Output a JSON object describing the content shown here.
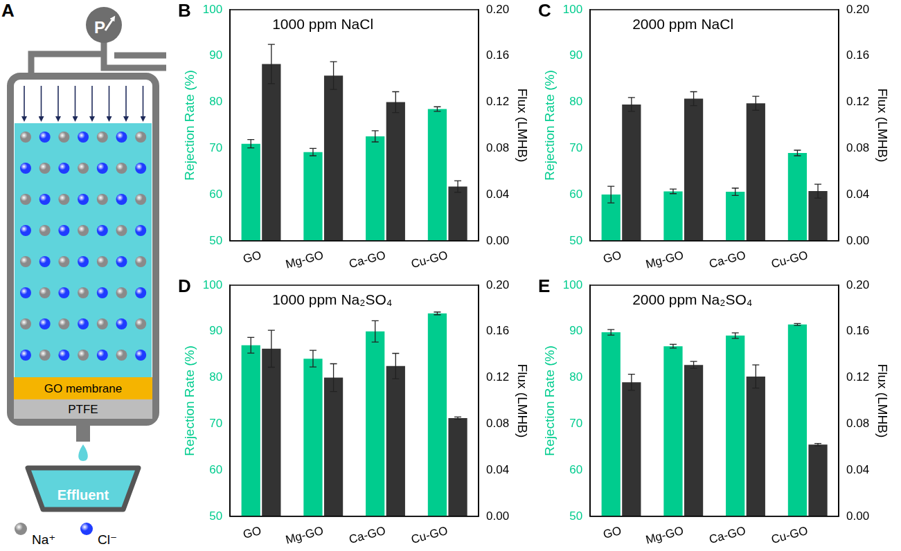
{
  "diagram": {
    "panel": "A",
    "gauge": "P",
    "membrane": "GO membrane",
    "support": "PTFE",
    "effluent": "Effluent",
    "ions": [
      {
        "label": "Na⁺",
        "color": "#8a8a8a"
      },
      {
        "label": "Cl⁻",
        "color": "#1f3cff"
      }
    ]
  },
  "chart_data": [
    {
      "panel": "B",
      "type": "bar",
      "title": "1000 ppm NaCl",
      "categories": [
        "GO",
        "Mg-GO",
        "Ca-GO",
        "Cu-GO"
      ],
      "y_label": "Rejection Rate (%)",
      "y2_label": "Flux (LMHB)",
      "grid": false,
      "ylim": [
        50,
        100
      ],
      "yticks": [
        50,
        60,
        70,
        80,
        90,
        100
      ],
      "y2lim": [
        0,
        0.2
      ],
      "y2ticks": [
        {
          "value": 0,
          "label": "0.00"
        },
        0.04,
        0.08,
        0.12,
        0.16,
        {
          "value": 0.2,
          "label": "0.20"
        }
      ],
      "series": [
        {
          "color": "#00cc8e",
          "values": [
            71.0,
            69.2,
            72.6,
            78.5
          ],
          "errors": [
            0.9,
            0.8,
            1.2,
            0.5
          ]
        },
        {
          "color": "#333333",
          "axis": "y2",
          "values": [
            0.153,
            0.143,
            0.12,
            0.047
          ],
          "errors": [
            0.017,
            0.012,
            0.009,
            0.005
          ]
        }
      ]
    },
    {
      "panel": "C",
      "type": "bar",
      "title": "2000 ppm NaCl",
      "categories": [
        "GO",
        "Mg-GO",
        "Ca-GO",
        "Cu-GO"
      ],
      "y_label": "Rejection Rate (%)",
      "y2_label": "Flux (LMHB)",
      "grid": false,
      "ylim": [
        50,
        100
      ],
      "yticks": [
        50,
        60,
        70,
        80,
        90,
        100
      ],
      "y2lim": [
        0,
        0.2
      ],
      "y2ticks": [
        {
          "value": 0,
          "label": "0.00"
        },
        0.04,
        0.08,
        0.12,
        0.16,
        {
          "value": 0.2,
          "label": "0.20"
        }
      ],
      "series": [
        {
          "color": "#00cc8e",
          "values": [
            60.0,
            60.7,
            60.6,
            69.0
          ],
          "errors": [
            1.8,
            0.5,
            0.8,
            0.6
          ]
        },
        {
          "color": "#333333",
          "axis": "y2",
          "values": [
            0.118,
            0.123,
            0.119,
            0.043
          ],
          "errors": [
            0.006,
            0.006,
            0.006,
            0.006
          ]
        }
      ]
    },
    {
      "panel": "D",
      "type": "bar",
      "title": "1000 ppm Na₂SO₄",
      "categories": [
        "GO",
        "Mg-GO",
        "Ca-GO",
        "Cu-GO"
      ],
      "y_label": "Rejection Rate (%)",
      "y2_label": "Flux (LMHB)",
      "grid": false,
      "ylim": [
        50,
        100
      ],
      "yticks": [
        50,
        60,
        70,
        80,
        90,
        100
      ],
      "y2lim": [
        0,
        0.2
      ],
      "y2ticks": [
        {
          "value": 0,
          "label": "0.00"
        },
        0.04,
        0.08,
        0.12,
        0.16,
        {
          "value": 0.2,
          "label": "0.20"
        }
      ],
      "series": [
        {
          "color": "#00cc8e",
          "values": [
            87.0,
            84.1,
            90.0,
            93.9
          ],
          "errors": [
            1.7,
            1.8,
            2.3,
            0.3
          ]
        },
        {
          "color": "#333333",
          "axis": "y2",
          "values": [
            0.145,
            0.12,
            0.13,
            0.085
          ],
          "errors": [
            0.016,
            0.012,
            0.011,
            0.001
          ]
        }
      ]
    },
    {
      "panel": "E",
      "type": "bar",
      "title": "2000 ppm Na₂SO₄",
      "categories": [
        "GO",
        "Mg-GO",
        "Ca-GO",
        "Cu-GO"
      ],
      "y_label": "Rejection Rate (%)",
      "y2_label": "Flux (LMHB)",
      "grid": false,
      "ylim": [
        50,
        100
      ],
      "yticks": [
        50,
        60,
        70,
        80,
        90,
        100
      ],
      "y2lim": [
        0,
        0.2
      ],
      "y2ticks": [
        {
          "value": 0,
          "label": "0.00"
        },
        0.04,
        0.08,
        0.12,
        0.16,
        {
          "value": 0.2,
          "label": "0.20"
        }
      ],
      "series": [
        {
          "color": "#00cc8e",
          "values": [
            89.8,
            86.8,
            89.1,
            91.5
          ],
          "errors": [
            0.6,
            0.4,
            0.6,
            0.2
          ]
        },
        {
          "color": "#333333",
          "axis": "y2",
          "values": [
            0.116,
            0.131,
            0.121,
            0.062
          ],
          "errors": [
            0.007,
            0.003,
            0.01,
            0.001
          ]
        }
      ]
    }
  ]
}
